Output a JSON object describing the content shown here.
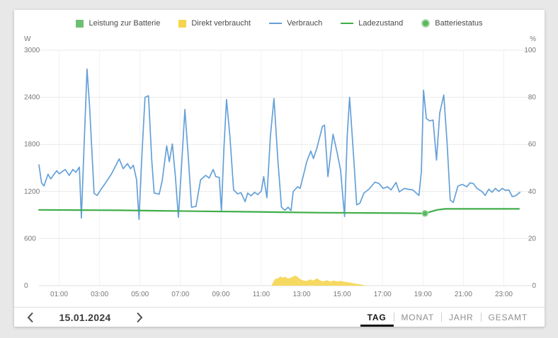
{
  "legend": {
    "items": [
      {
        "label": "Leistung zur Batterie",
        "marker": "square",
        "color": "#6FBF73"
      },
      {
        "label": "Direkt verbraucht",
        "marker": "square",
        "color": "#F5D54F"
      },
      {
        "label": "Verbrauch",
        "marker": "line",
        "color": "#64A0D8"
      },
      {
        "label": "Ladezustand",
        "marker": "line",
        "color": "#3FAE49"
      },
      {
        "label": "Batteriestatus",
        "marker": "dot",
        "color": "#5CB860"
      }
    ]
  },
  "chart_data": {
    "type": "line",
    "title": "",
    "x_axis": {
      "range": [
        0,
        24
      ],
      "tick_hours": [
        1,
        3,
        5,
        7,
        9,
        11,
        13,
        15,
        17,
        19,
        21,
        23
      ],
      "labels": [
        "01:00",
        "03:00",
        "05:00",
        "07:00",
        "09:00",
        "11:00",
        "13:00",
        "15:00",
        "17:00",
        "19:00",
        "21:00",
        "23:00"
      ]
    },
    "left_axis": {
      "unit": "W",
      "ticks": [
        0,
        600,
        1200,
        1800,
        2400,
        3000
      ],
      "range": [
        0,
        3000
      ]
    },
    "right_axis": {
      "unit": "%",
      "ticks": [
        0,
        20,
        40,
        60,
        80,
        100
      ],
      "range": [
        0,
        100
      ]
    },
    "grid": true,
    "legend_position": "top",
    "series": [
      {
        "name": "Leistung zur Batterie",
        "type": "area",
        "axis": "left",
        "color": "#6FBF73",
        "points": []
      },
      {
        "name": "Direkt verbraucht",
        "type": "area",
        "axis": "left",
        "color": "#F5D54F",
        "points": [
          [
            11.5,
            0
          ],
          [
            11.58,
            40
          ],
          [
            11.67,
            85
          ],
          [
            11.83,
            95
          ],
          [
            11.95,
            120
          ],
          [
            12.05,
            100
          ],
          [
            12.17,
            115
          ],
          [
            12.33,
            90
          ],
          [
            12.5,
            105
          ],
          [
            12.67,
            130
          ],
          [
            12.78,
            115
          ],
          [
            12.92,
            85
          ],
          [
            13.08,
            65
          ],
          [
            13.25,
            60
          ],
          [
            13.42,
            80
          ],
          [
            13.58,
            65
          ],
          [
            13.75,
            95
          ],
          [
            13.92,
            65
          ],
          [
            14.08,
            55
          ],
          [
            14.25,
            70
          ],
          [
            14.42,
            50
          ],
          [
            14.58,
            65
          ],
          [
            14.75,
            55
          ],
          [
            14.92,
            60
          ],
          [
            15.08,
            50
          ],
          [
            15.25,
            45
          ],
          [
            15.42,
            38
          ],
          [
            15.58,
            30
          ],
          [
            15.75,
            22
          ],
          [
            15.92,
            15
          ],
          [
            16.08,
            8
          ],
          [
            16.17,
            0
          ]
        ]
      },
      {
        "name": "Verbrauch",
        "type": "line",
        "axis": "left",
        "color": "#64A0D8",
        "points": [
          [
            0,
            1540
          ],
          [
            0.13,
            1310
          ],
          [
            0.25,
            1270
          ],
          [
            0.45,
            1420
          ],
          [
            0.58,
            1360
          ],
          [
            0.88,
            1465
          ],
          [
            1,
            1425
          ],
          [
            1.3,
            1480
          ],
          [
            1.5,
            1405
          ],
          [
            1.68,
            1480
          ],
          [
            1.83,
            1445
          ],
          [
            2,
            1510
          ],
          [
            2.1,
            860
          ],
          [
            2.22,
            1700
          ],
          [
            2.38,
            2760
          ],
          [
            2.5,
            2300
          ],
          [
            2.73,
            1175
          ],
          [
            2.88,
            1150
          ],
          [
            3.1,
            1240
          ],
          [
            3.3,
            1310
          ],
          [
            3.6,
            1430
          ],
          [
            3.97,
            1615
          ],
          [
            4.17,
            1490
          ],
          [
            4.38,
            1555
          ],
          [
            4.53,
            1490
          ],
          [
            4.67,
            1535
          ],
          [
            4.83,
            1350
          ],
          [
            4.95,
            845
          ],
          [
            5.1,
            1700
          ],
          [
            5.25,
            2400
          ],
          [
            5.42,
            2420
          ],
          [
            5.58,
            1600
          ],
          [
            5.7,
            1180
          ],
          [
            5.95,
            1165
          ],
          [
            6.1,
            1340
          ],
          [
            6.32,
            1780
          ],
          [
            6.45,
            1580
          ],
          [
            6.6,
            1805
          ],
          [
            6.75,
            1390
          ],
          [
            6.9,
            870
          ],
          [
            7.05,
            1500
          ],
          [
            7.22,
            2245
          ],
          [
            7.4,
            1600
          ],
          [
            7.55,
            1000
          ],
          [
            7.77,
            1010
          ],
          [
            8,
            1350
          ],
          [
            8.25,
            1405
          ],
          [
            8.42,
            1370
          ],
          [
            8.62,
            1480
          ],
          [
            8.75,
            1390
          ],
          [
            8.92,
            1380
          ],
          [
            9.03,
            950
          ],
          [
            9.15,
            1750
          ],
          [
            9.28,
            2370
          ],
          [
            9.45,
            1900
          ],
          [
            9.63,
            1220
          ],
          [
            9.83,
            1170
          ],
          [
            10,
            1185
          ],
          [
            10.2,
            1070
          ],
          [
            10.33,
            1180
          ],
          [
            10.5,
            1145
          ],
          [
            10.67,
            1190
          ],
          [
            10.83,
            1160
          ],
          [
            11,
            1205
          ],
          [
            11.12,
            1390
          ],
          [
            11.28,
            1120
          ],
          [
            11.45,
            1900
          ],
          [
            11.63,
            2385
          ],
          [
            11.82,
            1600
          ],
          [
            12,
            1000
          ],
          [
            12.17,
            960
          ],
          [
            12.33,
            1000
          ],
          [
            12.47,
            955
          ],
          [
            12.58,
            1200
          ],
          [
            12.8,
            1260
          ],
          [
            12.92,
            1240
          ],
          [
            13.08,
            1400
          ],
          [
            13.25,
            1580
          ],
          [
            13.45,
            1715
          ],
          [
            13.58,
            1620
          ],
          [
            13.75,
            1750
          ],
          [
            14.03,
            2030
          ],
          [
            14.13,
            2045
          ],
          [
            14.3,
            1390
          ],
          [
            14.55,
            1930
          ],
          [
            14.75,
            1700
          ],
          [
            14.92,
            1480
          ],
          [
            15.12,
            880
          ],
          [
            15.25,
            1900
          ],
          [
            15.37,
            2400
          ],
          [
            15.58,
            1600
          ],
          [
            15.72,
            1030
          ],
          [
            15.88,
            1050
          ],
          [
            16.08,
            1180
          ],
          [
            16.33,
            1230
          ],
          [
            16.63,
            1320
          ],
          [
            16.83,
            1300
          ],
          [
            17.03,
            1240
          ],
          [
            17.25,
            1260
          ],
          [
            17.42,
            1220
          ],
          [
            17.67,
            1315
          ],
          [
            17.83,
            1195
          ],
          [
            18.08,
            1240
          ],
          [
            18.25,
            1230
          ],
          [
            18.5,
            1220
          ],
          [
            18.8,
            1150
          ],
          [
            18.92,
            1450
          ],
          [
            19.03,
            2490
          ],
          [
            19.17,
            2130
          ],
          [
            19.33,
            2100
          ],
          [
            19.5,
            2110
          ],
          [
            19.67,
            1600
          ],
          [
            19.83,
            2200
          ],
          [
            20.03,
            2430
          ],
          [
            20.2,
            1800
          ],
          [
            20.35,
            1090
          ],
          [
            20.5,
            1060
          ],
          [
            20.73,
            1270
          ],
          [
            20.95,
            1290
          ],
          [
            21.17,
            1260
          ],
          [
            21.33,
            1310
          ],
          [
            21.5,
            1300
          ],
          [
            21.67,
            1240
          ],
          [
            21.92,
            1200
          ],
          [
            22.08,
            1150
          ],
          [
            22.25,
            1230
          ],
          [
            22.42,
            1190
          ],
          [
            22.58,
            1240
          ],
          [
            22.75,
            1200
          ],
          [
            22.92,
            1240
          ],
          [
            23.08,
            1215
          ],
          [
            23.25,
            1220
          ],
          [
            23.42,
            1135
          ],
          [
            23.58,
            1145
          ],
          [
            23.8,
            1190
          ]
        ]
      },
      {
        "name": "Ladezustand",
        "type": "line",
        "axis": "right",
        "color": "#3FAE49",
        "points": [
          [
            0,
            32.2
          ],
          [
            2,
            32.1
          ],
          [
            4,
            32.0
          ],
          [
            6,
            31.8
          ],
          [
            8,
            31.6
          ],
          [
            10,
            31.4
          ],
          [
            12,
            31.2
          ],
          [
            14,
            31.0
          ],
          [
            16,
            30.9
          ],
          [
            18,
            30.8
          ],
          [
            19.1,
            30.7
          ],
          [
            19.3,
            31.2
          ],
          [
            19.7,
            32.2
          ],
          [
            20.1,
            32.6
          ],
          [
            22,
            32.6
          ],
          [
            23.75,
            32.6
          ]
        ]
      },
      {
        "name": "Batteriestatus",
        "type": "point",
        "axis": "right",
        "color": "#5CB860",
        "points": [
          [
            19.1,
            30.7
          ]
        ]
      }
    ]
  },
  "footer": {
    "date": "15.01.2024",
    "prev_icon": "chevron-left",
    "next_icon": "chevron-right",
    "tabs": [
      {
        "label": "TAG",
        "active": true
      },
      {
        "label": "MONAT",
        "active": false
      },
      {
        "label": "JAHR",
        "active": false
      },
      {
        "label": "GESAMT",
        "active": false
      }
    ]
  }
}
